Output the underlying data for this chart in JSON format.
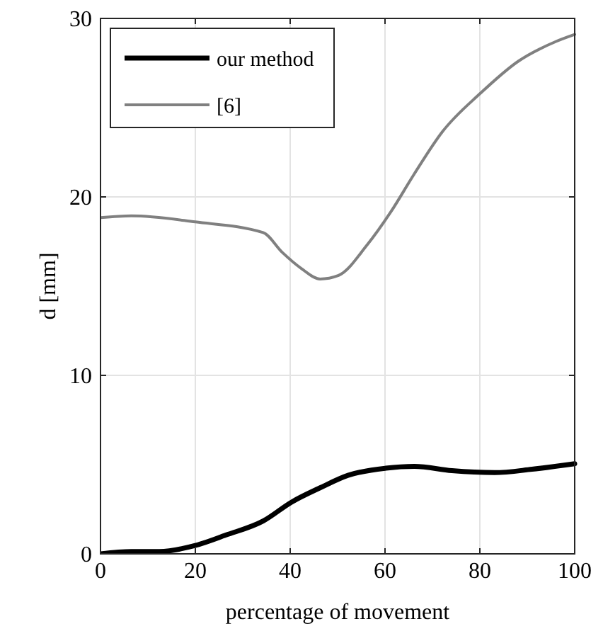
{
  "chart_data": {
    "type": "line",
    "xlabel": "percentage of movement",
    "ylabel": "d [mm]",
    "xlim": [
      0,
      100
    ],
    "ylim": [
      0,
      30
    ],
    "xticks": [
      0,
      20,
      40,
      60,
      80,
      100
    ],
    "yticks": [
      0,
      10,
      20,
      30
    ],
    "grid": true,
    "legend": "top left",
    "series": [
      {
        "name": "our method",
        "color": "#000000",
        "x": [
          0,
          6.5,
          12.4,
          20,
          26.4,
          34.3,
          40.3,
          46.3,
          52.2,
          60.2,
          66.2,
          74.1,
          83.1,
          91,
          100
        ],
        "values": [
          0,
          0.13,
          0.13,
          0.47,
          1.05,
          1.84,
          2.9,
          3.7,
          4.4,
          4.8,
          4.9,
          4.66,
          4.55,
          4.74,
          5.05
        ]
      },
      {
        "name": "[6]",
        "color": "#808080",
        "x": [
          0,
          6.5,
          20,
          34.3,
          38.3,
          42.3,
          46.3,
          50.2,
          56.2,
          61.2,
          66.2,
          72.1,
          80.1,
          88.1,
          96,
          100
        ],
        "values": [
          18.84,
          18.94,
          18.6,
          18,
          16.9,
          16,
          15.4,
          15.6,
          17.3,
          19.15,
          21.3,
          23.65,
          25.8,
          27.6,
          28.7,
          29.1
        ]
      }
    ]
  }
}
